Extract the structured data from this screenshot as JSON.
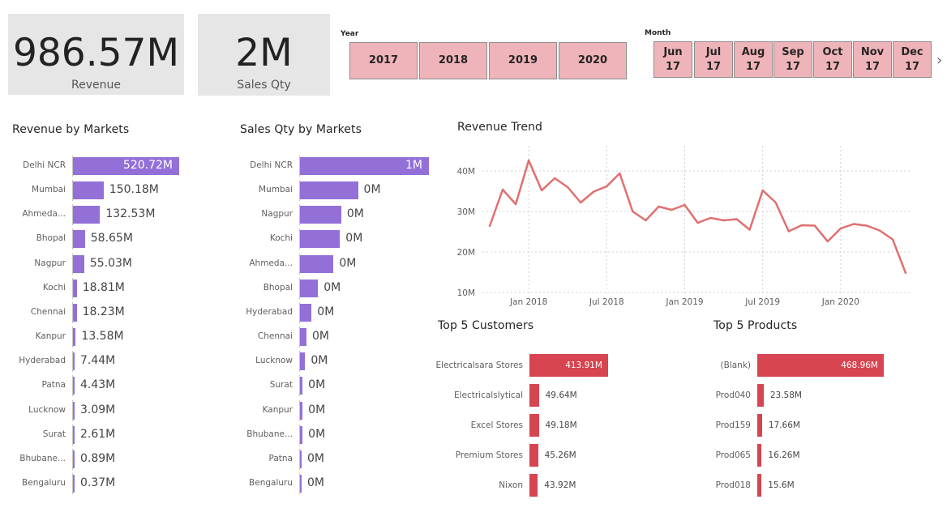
{
  "cards": {
    "revenue": {
      "value": "986.57M",
      "caption": "Revenue"
    },
    "qty": {
      "value": "2M",
      "caption": "Sales Qty"
    }
  },
  "year_slicer": {
    "title": "Year",
    "options": [
      "2017",
      "2018",
      "2019",
      "2020"
    ]
  },
  "month_slicer": {
    "title": "Month",
    "options": [
      {
        "m": "Jun",
        "y": "17"
      },
      {
        "m": "Jul",
        "y": "17"
      },
      {
        "m": "Aug",
        "y": "17"
      },
      {
        "m": "Sep",
        "y": "17"
      },
      {
        "m": "Oct",
        "y": "17"
      },
      {
        "m": "Nov",
        "y": "17"
      },
      {
        "m": "Dec",
        "y": "17"
      }
    ],
    "next_icon": "chevron-right-icon"
  },
  "colors": {
    "purple": "#9370d8",
    "red": "#d64550",
    "line": "#e07070",
    "slicer": "#efb4b9"
  },
  "revenue_by_markets": {
    "title": "Revenue by Markets",
    "rows": [
      {
        "label": "Delhi NCR",
        "value": 520.72,
        "display": "520.72M"
      },
      {
        "label": "Mumbai",
        "value": 150.18,
        "display": "150.18M"
      },
      {
        "label": "Ahmeda...",
        "value": 132.53,
        "display": "132.53M"
      },
      {
        "label": "Bhopal",
        "value": 58.65,
        "display": "58.65M"
      },
      {
        "label": "Nagpur",
        "value": 55.03,
        "display": "55.03M"
      },
      {
        "label": "Kochi",
        "value": 18.81,
        "display": "18.81M"
      },
      {
        "label": "Chennai",
        "value": 18.23,
        "display": "18.23M"
      },
      {
        "label": "Kanpur",
        "value": 13.58,
        "display": "13.58M"
      },
      {
        "label": "Hyderabad",
        "value": 7.44,
        "display": "7.44M"
      },
      {
        "label": "Patna",
        "value": 4.43,
        "display": "4.43M"
      },
      {
        "label": "Lucknow",
        "value": 3.09,
        "display": "3.09M"
      },
      {
        "label": "Surat",
        "value": 2.61,
        "display": "2.61M"
      },
      {
        "label": "Bhubane...",
        "value": 0.89,
        "display": "0.89M"
      },
      {
        "label": "Bengaluru",
        "value": 0.37,
        "display": "0.37M"
      }
    ]
  },
  "qty_by_markets": {
    "title": "Sales Qty by Markets",
    "rows": [
      {
        "label": "Delhi NCR",
        "value": 1.0,
        "display": "1M"
      },
      {
        "label": "Mumbai",
        "value": 0.45,
        "display": "0M"
      },
      {
        "label": "Nagpur",
        "value": 0.32,
        "display": "0M"
      },
      {
        "label": "Kochi",
        "value": 0.31,
        "display": "0M"
      },
      {
        "label": "Ahmeda...",
        "value": 0.26,
        "display": "0M"
      },
      {
        "label": "Bhopal",
        "value": 0.14,
        "display": "0M"
      },
      {
        "label": "Hyderabad",
        "value": 0.09,
        "display": "0M"
      },
      {
        "label": "Chennai",
        "value": 0.05,
        "display": "0M"
      },
      {
        "label": "Lucknow",
        "value": 0.04,
        "display": "0M"
      },
      {
        "label": "Surat",
        "value": 0.02,
        "display": "0M"
      },
      {
        "label": "Kanpur",
        "value": 0.02,
        "display": "0M"
      },
      {
        "label": "Bhubane...",
        "value": 0.02,
        "display": "0M"
      },
      {
        "label": "Patna",
        "value": 0.008,
        "display": "0M"
      },
      {
        "label": "Bengaluru",
        "value": 0.004,
        "display": "0M"
      }
    ]
  },
  "top_customers": {
    "title": "Top 5 Customers",
    "rows": [
      {
        "label": "Electricalsara Stores",
        "value": 413.91,
        "display": "413.91M"
      },
      {
        "label": "Electricalslytical",
        "value": 49.64,
        "display": "49.64M"
      },
      {
        "label": "Excel Stores",
        "value": 49.18,
        "display": "49.18M"
      },
      {
        "label": "Premium Stores",
        "value": 45.26,
        "display": "45.26M"
      },
      {
        "label": "Nixon",
        "value": 43.92,
        "display": "43.92M"
      }
    ]
  },
  "top_products": {
    "title": "Top 5 Products",
    "rows": [
      {
        "label": "(Blank)",
        "value": 468.96,
        "display": "468.96M"
      },
      {
        "label": "Prod040",
        "value": 23.58,
        "display": "23.58M"
      },
      {
        "label": "Prod159",
        "value": 17.66,
        "display": "17.66M"
      },
      {
        "label": "Prod065",
        "value": 16.26,
        "display": "16.26M"
      },
      {
        "label": "Prod018",
        "value": 15.6,
        "display": "15.6M"
      }
    ]
  },
  "chart_data": {
    "type": "line",
    "title": "Revenue Trend",
    "xlabel": "",
    "ylabel": "",
    "x_ticks": [
      "Jan 2018",
      "Jul 2018",
      "Jan 2019",
      "Jul 2019",
      "Jan 2020"
    ],
    "y_ticks": [
      "10M",
      "20M",
      "30M",
      "40M"
    ],
    "ylim": [
      10,
      46
    ],
    "x": [
      "2017-10",
      "2017-11",
      "2017-12",
      "2018-01",
      "2018-02",
      "2018-03",
      "2018-04",
      "2018-05",
      "2018-06",
      "2018-07",
      "2018-08",
      "2018-09",
      "2018-10",
      "2018-11",
      "2018-12",
      "2019-01",
      "2019-02",
      "2019-03",
      "2019-04",
      "2019-05",
      "2019-06",
      "2019-07",
      "2019-08",
      "2019-09",
      "2019-10",
      "2019-11",
      "2019-12",
      "2020-01",
      "2020-02",
      "2020-03",
      "2020-04",
      "2020-05",
      "2020-06"
    ],
    "series": [
      {
        "values": [
          26.4,
          35.4,
          31.8,
          42.6,
          35.2,
          38.2,
          36.0,
          32.2,
          34.9,
          36.2,
          39.4,
          30.0,
          27.8,
          31.2,
          30.4,
          31.6,
          27.2,
          28.4,
          27.8,
          28.1,
          25.5,
          35.2,
          32.2,
          25.1,
          26.6,
          26.5,
          22.6,
          25.8,
          26.9,
          26.5,
          25.3,
          23.1,
          14.8
        ]
      }
    ]
  }
}
